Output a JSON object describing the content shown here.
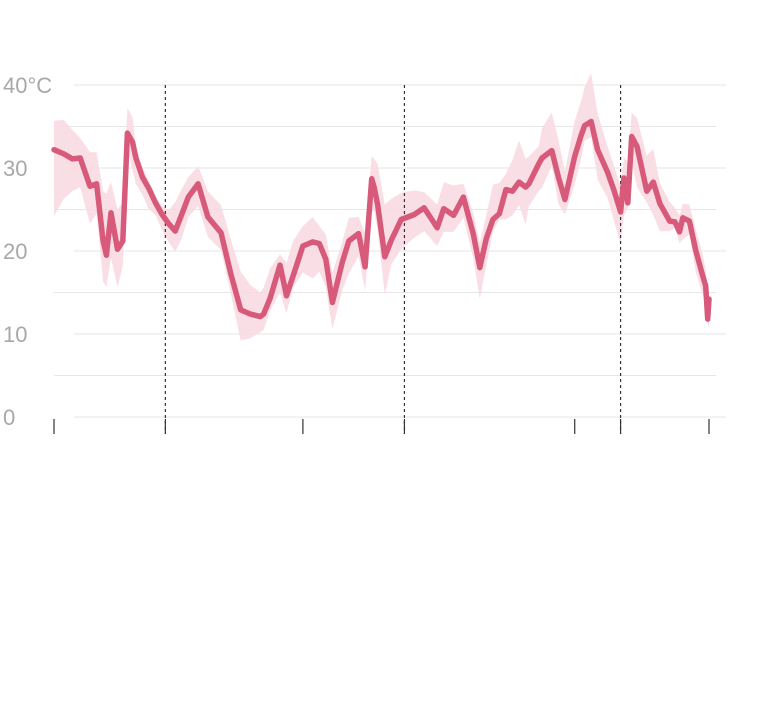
{
  "chart_data": {
    "type": "line",
    "title": "",
    "xlabel": "",
    "ylabel": "",
    "ylim": [
      0,
      40
    ],
    "y_ticks": [
      {
        "value": 40,
        "label": "40°C"
      },
      {
        "value": 30,
        "label": "30"
      },
      {
        "value": 20,
        "label": "20"
      },
      {
        "value": 10,
        "label": "10"
      },
      {
        "value": 0,
        "label": "0"
      }
    ],
    "y_minor_gridlines": [
      5,
      15,
      25,
      35
    ],
    "xlim": [
      0,
      100
    ],
    "x_ticks": [
      0,
      17,
      38,
      53.5,
      79.5,
      86.5,
      100
    ],
    "vertical_markers": [
      17,
      53.5,
      86.5
    ],
    "grid": true,
    "legend": "none",
    "colors": {
      "line": "#d75a7a",
      "band": "#f8d9e1",
      "grid": "#e6e6e6",
      "axis_text": "#a8a8a8",
      "marker": "#333333"
    },
    "series": [
      {
        "x": [
          0,
          1.5,
          2.8,
          4,
          5.5,
          6.5,
          7.5,
          8,
          8.7,
          9.7,
          10.5,
          11.2,
          12,
          12.5,
          13.5,
          14.5,
          15.5,
          16.5,
          17.5,
          18.5,
          19.5,
          20.5,
          22,
          23.5,
          25.5,
          27,
          28.5,
          30,
          31.5,
          32,
          33,
          34.5,
          35.5,
          36.5,
          38,
          39.5,
          40.5,
          41.5,
          42.5,
          44,
          45,
          46.5,
          47.5,
          48.5,
          48.9,
          49.4,
          50.5,
          51.5,
          53,
          55,
          56.5,
          58.5,
          59.5,
          61,
          62.5,
          64,
          65,
          66,
          67,
          68,
          69,
          70,
          71,
          72,
          72.5,
          74,
          74.5,
          76,
          77,
          78,
          79.5,
          80.5,
          81,
          82,
          83,
          84.5,
          85.5,
          86.5,
          87,
          87.6,
          88.2,
          89,
          90.5,
          91.5,
          92.5,
          94,
          94.8,
          95.5,
          96,
          97,
          98,
          99,
          99.5,
          99.8,
          100
        ],
        "values": [
          32.2,
          31.7,
          31.1,
          31.2,
          27.8,
          28.1,
          21.2,
          19.5,
          24.6,
          20.2,
          21.2,
          34.2,
          33.1,
          31.2,
          28.9,
          27.5,
          25.8,
          24.4,
          23.3,
          22.4,
          24.4,
          26.5,
          28.1,
          24.1,
          22.2,
          17.2,
          12.9,
          12.4,
          12.1,
          12.4,
          14.3,
          18.3,
          14.6,
          17.0,
          20.6,
          21.1,
          20.9,
          19.0,
          13.8,
          18.6,
          21.2,
          22.1,
          18.1,
          28.7,
          27.6,
          25.6,
          19.3,
          21.3,
          23.8,
          24.4,
          25.2,
          22.8,
          25.1,
          24.3,
          26.5,
          22.1,
          18.0,
          21.5,
          23.8,
          24.5,
          27.4,
          27.2,
          28.3,
          27.7,
          28.1,
          30.5,
          31.2,
          32.1,
          28.9,
          26.2,
          31.4,
          34.0,
          35.1,
          35.6,
          32.2,
          29.5,
          27.3,
          24.7,
          28.8,
          25.8,
          33.8,
          32.6,
          27.2,
          28.3,
          25.7,
          23.6,
          23.5,
          22.3,
          24.0,
          23.6,
          20.0,
          17.1,
          15.8,
          11.8,
          14.2
        ],
        "band_upper": [
          35.7,
          35.8,
          34.6,
          33.6,
          31.9,
          31.9,
          27.2,
          26.9,
          28.3,
          25.0,
          25.9,
          37.2,
          36.1,
          32.4,
          30.1,
          28.3,
          26.6,
          25.4,
          24.9,
          25.9,
          27.5,
          28.9,
          30.2,
          27.2,
          25.5,
          21.4,
          17.5,
          15.9,
          15.0,
          15.6,
          17.9,
          19.6,
          18.6,
          21.2,
          23.0,
          24.1,
          23.0,
          22.0,
          17.4,
          21.1,
          24.0,
          24.1,
          22.2,
          31.5,
          31.1,
          30.5,
          25.6,
          26.3,
          27.0,
          27.3,
          27.1,
          25.6,
          28.3,
          27.9,
          28.1,
          24.6,
          21.0,
          24.3,
          28.0,
          28.2,
          29.3,
          31.0,
          33.3,
          31.1,
          31.4,
          32.6,
          34.8,
          36.7,
          33.4,
          29.6,
          35.7,
          38.1,
          39.8,
          41.4,
          36.6,
          32.6,
          30.3,
          27.7,
          31.3,
          30.7,
          36.7,
          36.0,
          31.5,
          32.3,
          28.2,
          25.9,
          25.2,
          24.3,
          25.7,
          25.6,
          22.5,
          19.7,
          17.8,
          14.1,
          15.4
        ],
        "band_lower": [
          24.2,
          26.3,
          27.2,
          27.7,
          23.3,
          24.5,
          16.3,
          15.7,
          19.2,
          15.6,
          18.2,
          32.5,
          29.7,
          28.1,
          26.8,
          25.0,
          24.3,
          22.5,
          21.1,
          19.9,
          21.5,
          24.1,
          25.4,
          21.7,
          20.1,
          14.8,
          9.2,
          9.5,
          10.2,
          10.5,
          12.8,
          15.0,
          12.5,
          15.6,
          17.4,
          16.7,
          17.5,
          15.7,
          10.6,
          15.2,
          17.3,
          19.4,
          15.2,
          24.9,
          24.8,
          22.5,
          14.7,
          18.4,
          20.2,
          21.6,
          22.4,
          20.6,
          22.3,
          22.3,
          24.0,
          19.2,
          14.2,
          18.3,
          22.3,
          23.8,
          23.8,
          24.3,
          25.5,
          23.2,
          25.4,
          27.2,
          27.6,
          30.3,
          25.7,
          24.4,
          28.0,
          31.2,
          33.3,
          33.7,
          28.6,
          26.4,
          23.6,
          20.8,
          24.3,
          25.1,
          30.8,
          27.7,
          25.8,
          24.3,
          22.4,
          22.4,
          22.8,
          20.9,
          21.4,
          22.0,
          17.4,
          14.8,
          14.4,
          11.3,
          10.6
        ]
      }
    ]
  }
}
